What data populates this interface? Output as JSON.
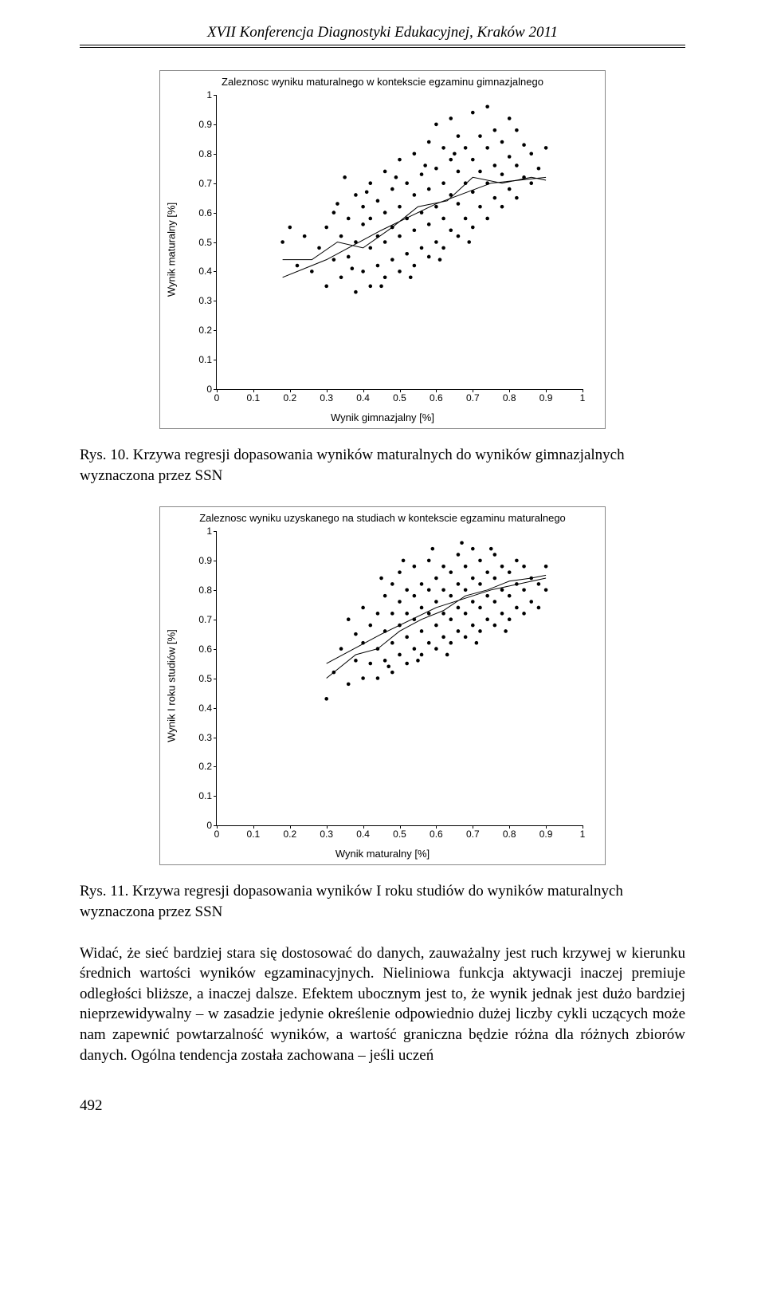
{
  "header": "XVII Konferencja Diagnostyki Edukacyjnej, Kraków 2011",
  "page_number": "492",
  "chart1": {
    "type": "scatter",
    "title": "Zaleznosc wyniku maturalnego w kontekscie egzaminu gimnazjalnego",
    "xlabel": "Wynik gimnazjalny [%]",
    "ylabel": "Wynik maturalny [%]",
    "xlim": [
      0,
      1
    ],
    "ylim": [
      0,
      1
    ],
    "xtick_step": 0.1,
    "ytick_step": 0.1,
    "point_color": "#000000",
    "marker_radius": 2.3,
    "line_color": "#000000",
    "line_width": 1,
    "background_color": "#ffffff",
    "points": [
      [
        0.18,
        0.5
      ],
      [
        0.2,
        0.55
      ],
      [
        0.22,
        0.42
      ],
      [
        0.24,
        0.52
      ],
      [
        0.26,
        0.4
      ],
      [
        0.28,
        0.48
      ],
      [
        0.3,
        0.35
      ],
      [
        0.3,
        0.55
      ],
      [
        0.32,
        0.44
      ],
      [
        0.32,
        0.6
      ],
      [
        0.34,
        0.38
      ],
      [
        0.34,
        0.52
      ],
      [
        0.35,
        0.72
      ],
      [
        0.36,
        0.45
      ],
      [
        0.36,
        0.58
      ],
      [
        0.38,
        0.33
      ],
      [
        0.38,
        0.5
      ],
      [
        0.38,
        0.66
      ],
      [
        0.4,
        0.4
      ],
      [
        0.4,
        0.56
      ],
      [
        0.4,
        0.62
      ],
      [
        0.42,
        0.35
      ],
      [
        0.42,
        0.48
      ],
      [
        0.42,
        0.58
      ],
      [
        0.42,
        0.7
      ],
      [
        0.44,
        0.42
      ],
      [
        0.44,
        0.52
      ],
      [
        0.44,
        0.64
      ],
      [
        0.46,
        0.38
      ],
      [
        0.46,
        0.5
      ],
      [
        0.46,
        0.6
      ],
      [
        0.46,
        0.74
      ],
      [
        0.48,
        0.44
      ],
      [
        0.48,
        0.55
      ],
      [
        0.48,
        0.68
      ],
      [
        0.5,
        0.4
      ],
      [
        0.5,
        0.52
      ],
      [
        0.5,
        0.62
      ],
      [
        0.5,
        0.78
      ],
      [
        0.52,
        0.46
      ],
      [
        0.52,
        0.58
      ],
      [
        0.52,
        0.7
      ],
      [
        0.54,
        0.42
      ],
      [
        0.54,
        0.54
      ],
      [
        0.54,
        0.66
      ],
      [
        0.54,
        0.8
      ],
      [
        0.56,
        0.48
      ],
      [
        0.56,
        0.6
      ],
      [
        0.56,
        0.73
      ],
      [
        0.58,
        0.45
      ],
      [
        0.58,
        0.56
      ],
      [
        0.58,
        0.68
      ],
      [
        0.58,
        0.84
      ],
      [
        0.6,
        0.5
      ],
      [
        0.6,
        0.62
      ],
      [
        0.6,
        0.75
      ],
      [
        0.6,
        0.9
      ],
      [
        0.62,
        0.48
      ],
      [
        0.62,
        0.58
      ],
      [
        0.62,
        0.7
      ],
      [
        0.62,
        0.82
      ],
      [
        0.64,
        0.54
      ],
      [
        0.64,
        0.66
      ],
      [
        0.64,
        0.78
      ],
      [
        0.64,
        0.92
      ],
      [
        0.66,
        0.52
      ],
      [
        0.66,
        0.63
      ],
      [
        0.66,
        0.74
      ],
      [
        0.66,
        0.86
      ],
      [
        0.68,
        0.58
      ],
      [
        0.68,
        0.7
      ],
      [
        0.68,
        0.82
      ],
      [
        0.7,
        0.55
      ],
      [
        0.7,
        0.67
      ],
      [
        0.7,
        0.78
      ],
      [
        0.7,
        0.94
      ],
      [
        0.72,
        0.62
      ],
      [
        0.72,
        0.74
      ],
      [
        0.72,
        0.86
      ],
      [
        0.74,
        0.58
      ],
      [
        0.74,
        0.7
      ],
      [
        0.74,
        0.82
      ],
      [
        0.74,
        0.96
      ],
      [
        0.76,
        0.65
      ],
      [
        0.76,
        0.76
      ],
      [
        0.76,
        0.88
      ],
      [
        0.78,
        0.62
      ],
      [
        0.78,
        0.73
      ],
      [
        0.78,
        0.84
      ],
      [
        0.8,
        0.68
      ],
      [
        0.8,
        0.79
      ],
      [
        0.8,
        0.92
      ],
      [
        0.82,
        0.65
      ],
      [
        0.82,
        0.76
      ],
      [
        0.82,
        0.88
      ],
      [
        0.84,
        0.72
      ],
      [
        0.84,
        0.83
      ],
      [
        0.86,
        0.7
      ],
      [
        0.86,
        0.8
      ],
      [
        0.88,
        0.75
      ],
      [
        0.9,
        0.82
      ],
      [
        0.33,
        0.63
      ],
      [
        0.37,
        0.41
      ],
      [
        0.41,
        0.67
      ],
      [
        0.45,
        0.35
      ],
      [
        0.49,
        0.72
      ],
      [
        0.53,
        0.38
      ],
      [
        0.57,
        0.76
      ],
      [
        0.61,
        0.44
      ],
      [
        0.65,
        0.8
      ],
      [
        0.69,
        0.5
      ]
    ],
    "curve1": [
      [
        0.18,
        0.38
      ],
      [
        0.3,
        0.44
      ],
      [
        0.45,
        0.54
      ],
      [
        0.6,
        0.63
      ],
      [
        0.75,
        0.7
      ],
      [
        0.9,
        0.72
      ]
    ],
    "curve2": [
      [
        0.18,
        0.44
      ],
      [
        0.26,
        0.44
      ],
      [
        0.33,
        0.5
      ],
      [
        0.4,
        0.48
      ],
      [
        0.48,
        0.55
      ],
      [
        0.55,
        0.62
      ],
      [
        0.63,
        0.64
      ],
      [
        0.7,
        0.72
      ],
      [
        0.78,
        0.7
      ],
      [
        0.86,
        0.72
      ],
      [
        0.9,
        0.71
      ]
    ]
  },
  "caption1": "Rys. 10. Krzywa regresji dopasowania wyników maturalnych do wyników gimnazjalnych wyznaczona przez SSN",
  "chart2": {
    "type": "scatter",
    "title": "Zaleznosc wyniku uzyskanego na studiach w kontekscie egzaminu maturalnego",
    "xlabel": "Wynik maturalny [%]",
    "ylabel": "Wynik I roku studiów [%]",
    "xlim": [
      0,
      1
    ],
    "ylim": [
      0,
      1
    ],
    "xtick_step": 0.1,
    "ytick_step": 0.1,
    "point_color": "#000000",
    "marker_radius": 2.3,
    "line_color": "#000000",
    "line_width": 1,
    "background_color": "#ffffff",
    "points": [
      [
        0.3,
        0.43
      ],
      [
        0.32,
        0.52
      ],
      [
        0.34,
        0.6
      ],
      [
        0.36,
        0.48
      ],
      [
        0.36,
        0.7
      ],
      [
        0.38,
        0.56
      ],
      [
        0.38,
        0.65
      ],
      [
        0.4,
        0.5
      ],
      [
        0.4,
        0.62
      ],
      [
        0.4,
        0.74
      ],
      [
        0.42,
        0.55
      ],
      [
        0.42,
        0.68
      ],
      [
        0.44,
        0.5
      ],
      [
        0.44,
        0.6
      ],
      [
        0.44,
        0.72
      ],
      [
        0.46,
        0.56
      ],
      [
        0.46,
        0.66
      ],
      [
        0.46,
        0.78
      ],
      [
        0.48,
        0.52
      ],
      [
        0.48,
        0.62
      ],
      [
        0.48,
        0.72
      ],
      [
        0.48,
        0.82
      ],
      [
        0.5,
        0.58
      ],
      [
        0.5,
        0.68
      ],
      [
        0.5,
        0.76
      ],
      [
        0.5,
        0.86
      ],
      [
        0.52,
        0.55
      ],
      [
        0.52,
        0.64
      ],
      [
        0.52,
        0.72
      ],
      [
        0.52,
        0.8
      ],
      [
        0.54,
        0.6
      ],
      [
        0.54,
        0.7
      ],
      [
        0.54,
        0.78
      ],
      [
        0.54,
        0.88
      ],
      [
        0.56,
        0.58
      ],
      [
        0.56,
        0.66
      ],
      [
        0.56,
        0.74
      ],
      [
        0.56,
        0.82
      ],
      [
        0.58,
        0.62
      ],
      [
        0.58,
        0.72
      ],
      [
        0.58,
        0.8
      ],
      [
        0.58,
        0.9
      ],
      [
        0.6,
        0.6
      ],
      [
        0.6,
        0.68
      ],
      [
        0.6,
        0.76
      ],
      [
        0.6,
        0.84
      ],
      [
        0.62,
        0.64
      ],
      [
        0.62,
        0.72
      ],
      [
        0.62,
        0.8
      ],
      [
        0.62,
        0.88
      ],
      [
        0.64,
        0.62
      ],
      [
        0.64,
        0.7
      ],
      [
        0.64,
        0.78
      ],
      [
        0.64,
        0.86
      ],
      [
        0.66,
        0.66
      ],
      [
        0.66,
        0.74
      ],
      [
        0.66,
        0.82
      ],
      [
        0.66,
        0.92
      ],
      [
        0.68,
        0.64
      ],
      [
        0.68,
        0.72
      ],
      [
        0.68,
        0.8
      ],
      [
        0.68,
        0.88
      ],
      [
        0.7,
        0.68
      ],
      [
        0.7,
        0.76
      ],
      [
        0.7,
        0.84
      ],
      [
        0.7,
        0.94
      ],
      [
        0.72,
        0.66
      ],
      [
        0.72,
        0.74
      ],
      [
        0.72,
        0.82
      ],
      [
        0.72,
        0.9
      ],
      [
        0.74,
        0.7
      ],
      [
        0.74,
        0.78
      ],
      [
        0.74,
        0.86
      ],
      [
        0.76,
        0.68
      ],
      [
        0.76,
        0.76
      ],
      [
        0.76,
        0.84
      ],
      [
        0.76,
        0.92
      ],
      [
        0.78,
        0.72
      ],
      [
        0.78,
        0.8
      ],
      [
        0.78,
        0.88
      ],
      [
        0.8,
        0.7
      ],
      [
        0.8,
        0.78
      ],
      [
        0.8,
        0.86
      ],
      [
        0.82,
        0.74
      ],
      [
        0.82,
        0.82
      ],
      [
        0.82,
        0.9
      ],
      [
        0.84,
        0.72
      ],
      [
        0.84,
        0.8
      ],
      [
        0.84,
        0.88
      ],
      [
        0.86,
        0.76
      ],
      [
        0.86,
        0.84
      ],
      [
        0.88,
        0.74
      ],
      [
        0.88,
        0.82
      ],
      [
        0.9,
        0.8
      ],
      [
        0.9,
        0.88
      ],
      [
        0.45,
        0.84
      ],
      [
        0.47,
        0.54
      ],
      [
        0.51,
        0.9
      ],
      [
        0.55,
        0.56
      ],
      [
        0.59,
        0.94
      ],
      [
        0.63,
        0.58
      ],
      [
        0.67,
        0.96
      ],
      [
        0.71,
        0.62
      ],
      [
        0.75,
        0.94
      ],
      [
        0.79,
        0.66
      ]
    ],
    "curve1": [
      [
        0.3,
        0.55
      ],
      [
        0.45,
        0.65
      ],
      [
        0.6,
        0.74
      ],
      [
        0.75,
        0.8
      ],
      [
        0.9,
        0.84
      ]
    ],
    "curve2": [
      [
        0.3,
        0.5
      ],
      [
        0.38,
        0.58
      ],
      [
        0.44,
        0.6
      ],
      [
        0.5,
        0.66
      ],
      [
        0.56,
        0.7
      ],
      [
        0.62,
        0.73
      ],
      [
        0.68,
        0.78
      ],
      [
        0.74,
        0.8
      ],
      [
        0.8,
        0.83
      ],
      [
        0.86,
        0.84
      ],
      [
        0.9,
        0.85
      ]
    ]
  },
  "caption2": "Rys. 11. Krzywa regresji dopasowania wyników I roku studiów do wyników maturalnych wyznaczona przez SSN",
  "body": "Widać, że sieć bardziej stara się dostosować do danych, zauważalny jest ruch krzywej w kierunku średnich wartości wyników egzaminacyjnych. Nieliniowa funkcja aktywacji inaczej premiuje odległości bliższe, a inaczej dalsze. Efektem ubocznym jest to, że wynik jednak jest dużo bardziej nieprzewidywalny – w zasadzie jedynie określenie odpowiednio dużej liczby cykli uczących może nam zapewnić powtarzalność wyników, a wartość graniczna będzie różna dla różnych zbiorów danych. Ogólna tendencja została zachowana – jeśli uczeń"
}
